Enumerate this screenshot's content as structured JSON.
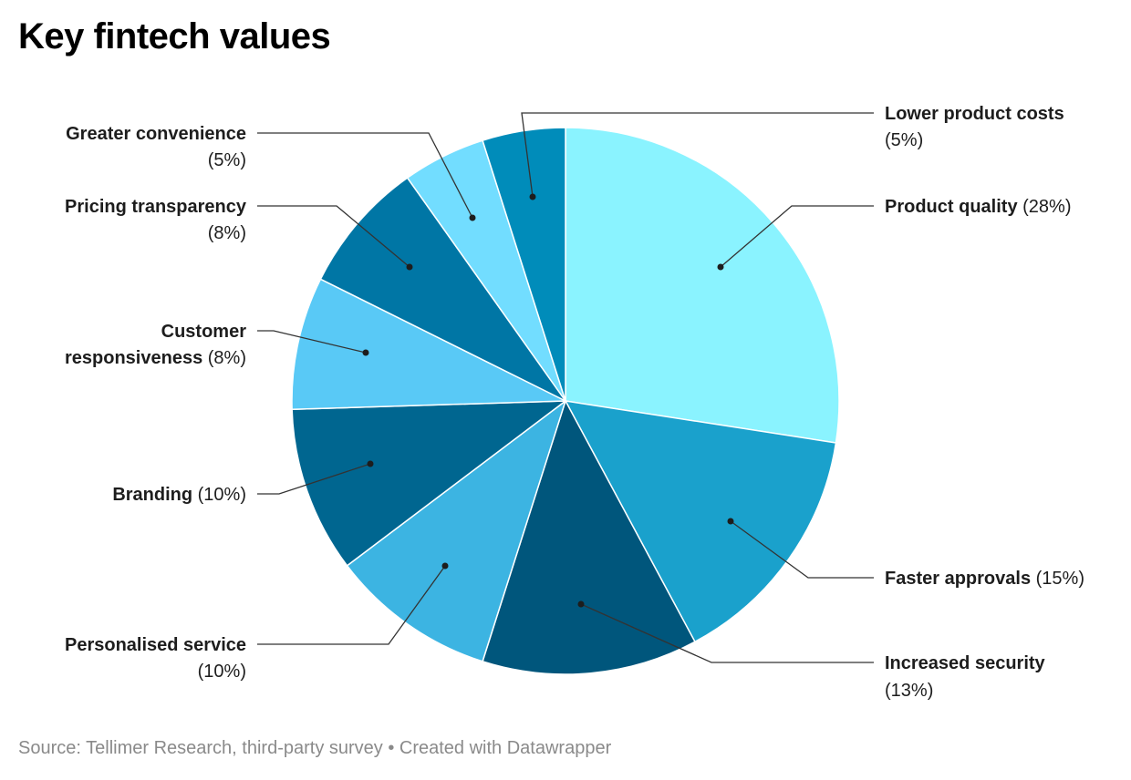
{
  "chart_data": {
    "type": "pie",
    "title": "Key fintech values",
    "slices": [
      {
        "label": "Product quality",
        "value": 28,
        "display": "(28%)",
        "color": "#8af3ff"
      },
      {
        "label": "Faster approvals",
        "value": 15,
        "display": "(15%)",
        "color": "#1aa1cc"
      },
      {
        "label": "Increased security",
        "value": 13,
        "display": "(13%)",
        "color": "#00567c"
      },
      {
        "label": "Personalised service",
        "value": 10,
        "display": "(10%)",
        "color": "#3cb4e2"
      },
      {
        "label": "Branding",
        "value": 10,
        "display": "(10%)",
        "color": "#006690"
      },
      {
        "label": "Customer responsiveness",
        "value": 8,
        "display": "(8%)",
        "color": "#59c9f6"
      },
      {
        "label": "Pricing transparency",
        "value": 8,
        "display": "(8%)",
        "color": "#0076a5"
      },
      {
        "label": "Greater convenience",
        "value": 5,
        "display": "(5%)",
        "color": "#72ddff"
      },
      {
        "label": "Lower product costs",
        "value": 5,
        "display": "(5%)",
        "color": "#008cba"
      }
    ]
  },
  "footer": {
    "text": "Source: Tellimer Research, third-party survey • Created with Datawrapper"
  }
}
